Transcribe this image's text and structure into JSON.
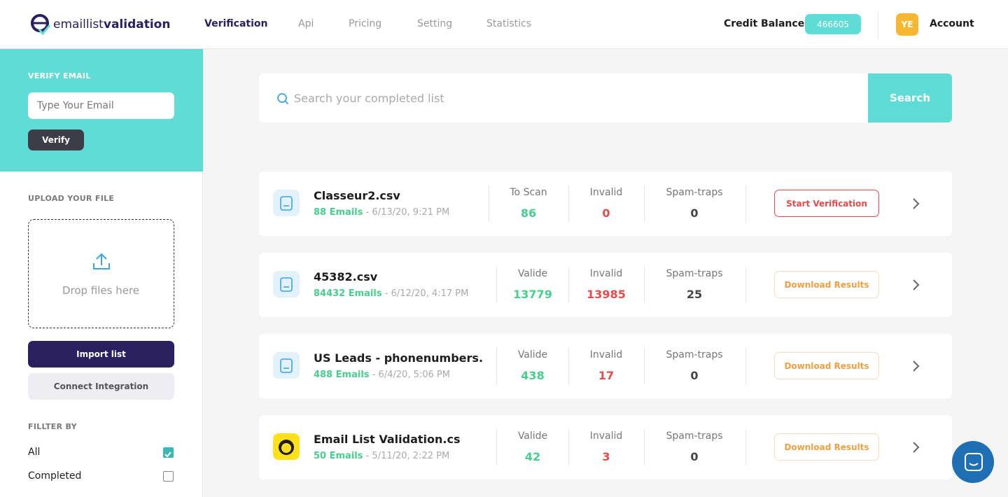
{
  "header": {
    "logo": {
      "prefix": "emaillist",
      "suffix": "validation"
    },
    "nav": [
      "Verification",
      "Api",
      "Pricing",
      "Setting",
      "Statistics"
    ],
    "active_nav": 0,
    "credit_label": "Credit Balance",
    "credit_value": 466605,
    "avatar": "YE",
    "account": "Account"
  },
  "search": {
    "placeholder": "Search your completed list",
    "button": "Search"
  },
  "sidebar": {
    "verify_title": "VERIFY EMAIL",
    "email_placeholder": "Type Your Email",
    "verify_button": "Verify",
    "upload_title": "UPLOAD YOUR FILE",
    "drop_text": "Drop files here",
    "import_button": "Import list",
    "connect_button": "Connect Integration",
    "filter_title": "FILLTER BY",
    "filters": [
      {
        "label": "All",
        "checked": true
      },
      {
        "label": "Completed",
        "checked": false
      }
    ]
  },
  "lists": [
    {
      "icon": "file",
      "name": "Classeur2.csv",
      "emails": "88 Emails",
      "date": "- 6/13/20, 9:21 PM",
      "stats": [
        {
          "label": "To Scan",
          "value": 86
        },
        {
          "label": "Invalid",
          "value": 0
        },
        {
          "label": "Spam-traps",
          "value": 0
        }
      ],
      "action": "Start Verification",
      "action_style": "start"
    },
    {
      "icon": "file",
      "name": "45382.csv",
      "emails": "84432 Emails",
      "date": "- 6/12/20, 4:17 PM",
      "stats": [
        {
          "label": "Valide",
          "value": 13779
        },
        {
          "label": "Invalid",
          "value": 13985
        },
        {
          "label": "Spam-traps",
          "value": 25
        }
      ],
      "action": "Download Results",
      "action_style": "download"
    },
    {
      "icon": "file",
      "name": "US Leads - phonenumbers.",
      "emails": "488 Emails",
      "date": "- 6/4/20, 5:06 PM",
      "stats": [
        {
          "label": "Valide",
          "value": 438
        },
        {
          "label": "Invalid",
          "value": 17
        },
        {
          "label": "Spam-traps",
          "value": 0
        }
      ],
      "action": "Download Results",
      "action_style": "download"
    },
    {
      "icon": "mailchimp",
      "name": "Email List Validation.cs",
      "emails": "50 Emails",
      "date": "- 5/11/20, 2:22 PM",
      "stats": [
        {
          "label": "Valide",
          "value": 42
        },
        {
          "label": "Invalid",
          "value": 3
        },
        {
          "label": "Spam-traps",
          "value": 0
        }
      ],
      "action": "Download Results",
      "action_style": "download"
    }
  ]
}
